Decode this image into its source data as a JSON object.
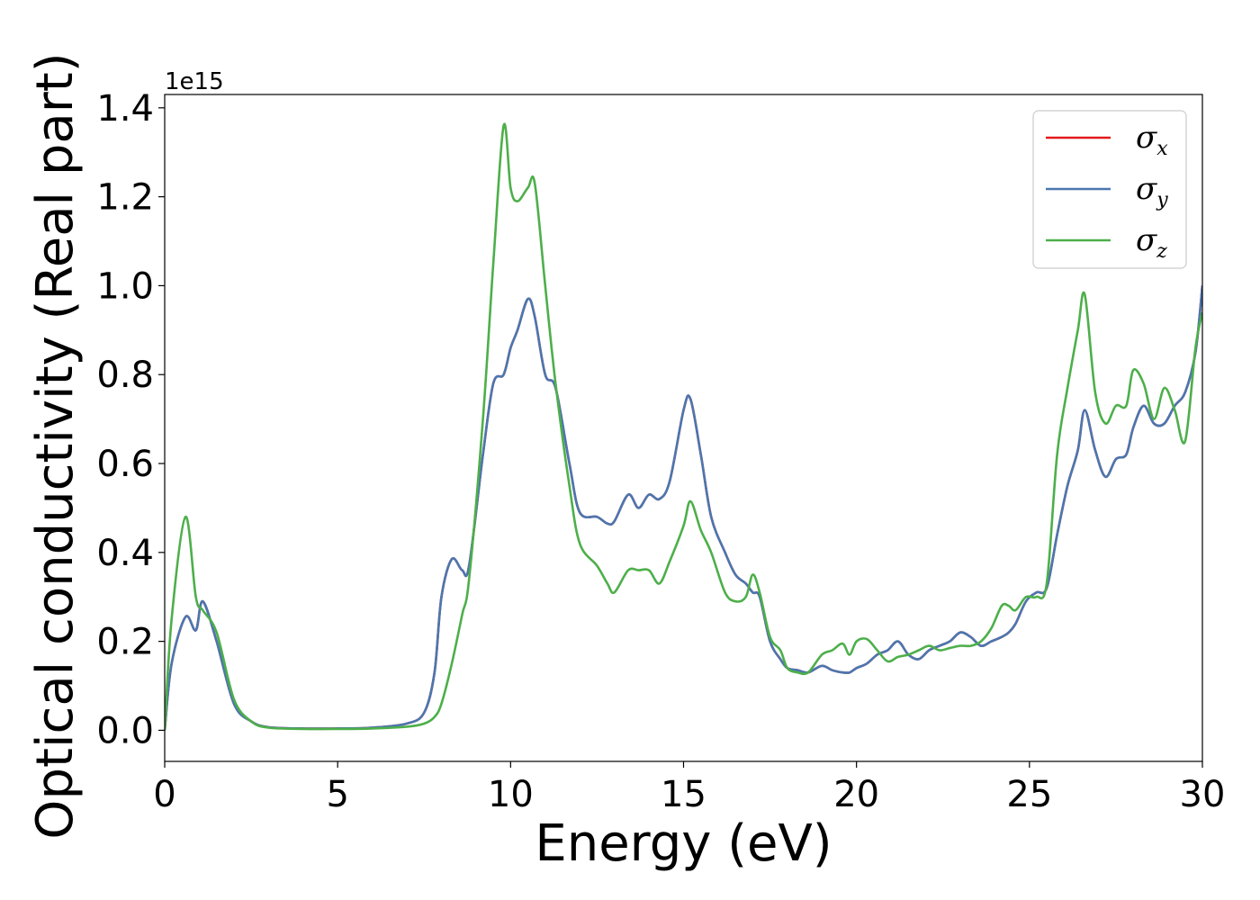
{
  "chart_data": {
    "type": "line",
    "xlabel": "Energy (eV)",
    "ylabel": "Optical conductivity (Real part)",
    "y_offset_label": "1e15",
    "xlim": [
      0,
      30
    ],
    "ylim": [
      -0.07,
      1.43
    ],
    "x_ticks": [
      0,
      5,
      10,
      15,
      20,
      25,
      30
    ],
    "x_tick_labels": [
      "0",
      "5",
      "10",
      "15",
      "20",
      "25",
      "30"
    ],
    "y_ticks": [
      0.0,
      0.2,
      0.4,
      0.6,
      0.8,
      1.0,
      1.2,
      1.4
    ],
    "y_tick_labels": [
      "0.0",
      "0.2",
      "0.4",
      "0.6",
      "0.8",
      "1.0",
      "1.2",
      "1.4"
    ],
    "grid": false,
    "legend_position": "top-right",
    "colors": {
      "sigma_x": "#e41a1c",
      "sigma_y": "#4a77b0",
      "sigma_z": "#4daf4a"
    },
    "legend": [
      {
        "base": "σ",
        "sub": "x",
        "color": "#e41a1c"
      },
      {
        "base": "σ",
        "sub": "y",
        "color": "#4a77b0"
      },
      {
        "base": "σ",
        "sub": "z",
        "color": "#4daf4a"
      }
    ],
    "x": [
      0,
      0.2,
      0.6,
      0.9,
      1.1,
      1.5,
      2.0,
      2.5,
      3.0,
      4.0,
      5.0,
      6.0,
      7.0,
      7.5,
      7.8,
      8.0,
      8.3,
      8.6,
      8.8,
      9.2,
      9.5,
      9.8,
      10.0,
      10.2,
      10.5,
      10.7,
      11.0,
      11.3,
      11.7,
      12.0,
      12.5,
      12.8,
      13.0,
      13.4,
      13.7,
      14.0,
      14.3,
      14.6,
      15.0,
      15.2,
      15.5,
      15.8,
      16.2,
      16.5,
      16.8,
      17.0,
      17.2,
      17.5,
      17.8,
      18.0,
      18.3,
      18.6,
      19.0,
      19.3,
      19.6,
      19.8,
      20.0,
      20.3,
      20.6,
      20.9,
      21.2,
      21.5,
      21.8,
      22.1,
      22.4,
      22.7,
      23.0,
      23.3,
      23.6,
      23.9,
      24.2,
      24.4,
      24.6,
      24.9,
      25.2,
      25.5,
      25.8,
      26.1,
      26.4,
      26.6,
      26.9,
      27.2,
      27.5,
      27.8,
      28.0,
      28.3,
      28.6,
      28.9,
      29.2,
      29.5,
      29.8,
      30.0
    ],
    "series": [
      {
        "name": "σx",
        "color": "#e41a1c",
        "values": [
          0,
          0.15,
          0.255,
          0.225,
          0.29,
          0.2,
          0.06,
          0.02,
          0.007,
          0.004,
          0.004,
          0.006,
          0.015,
          0.04,
          0.13,
          0.3,
          0.385,
          0.36,
          0.37,
          0.62,
          0.78,
          0.8,
          0.86,
          0.9,
          0.97,
          0.93,
          0.8,
          0.77,
          0.6,
          0.49,
          0.48,
          0.465,
          0.47,
          0.53,
          0.5,
          0.53,
          0.52,
          0.56,
          0.72,
          0.745,
          0.62,
          0.48,
          0.4,
          0.35,
          0.33,
          0.31,
          0.3,
          0.2,
          0.16,
          0.14,
          0.135,
          0.13,
          0.145,
          0.135,
          0.13,
          0.13,
          0.14,
          0.15,
          0.17,
          0.18,
          0.2,
          0.17,
          0.16,
          0.18,
          0.19,
          0.2,
          0.22,
          0.21,
          0.19,
          0.2,
          0.21,
          0.22,
          0.24,
          0.29,
          0.31,
          0.32,
          0.44,
          0.55,
          0.63,
          0.72,
          0.63,
          0.57,
          0.61,
          0.62,
          0.68,
          0.73,
          0.69,
          0.69,
          0.73,
          0.76,
          0.85,
          1.0
        ]
      },
      {
        "name": "σy",
        "color": "#4a77b0",
        "values": [
          0,
          0.15,
          0.255,
          0.225,
          0.29,
          0.2,
          0.06,
          0.02,
          0.007,
          0.004,
          0.004,
          0.006,
          0.015,
          0.04,
          0.13,
          0.3,
          0.385,
          0.36,
          0.37,
          0.62,
          0.78,
          0.8,
          0.86,
          0.9,
          0.97,
          0.93,
          0.8,
          0.77,
          0.6,
          0.49,
          0.48,
          0.465,
          0.47,
          0.53,
          0.5,
          0.53,
          0.52,
          0.56,
          0.72,
          0.745,
          0.62,
          0.48,
          0.4,
          0.35,
          0.33,
          0.31,
          0.3,
          0.2,
          0.16,
          0.14,
          0.135,
          0.13,
          0.145,
          0.135,
          0.13,
          0.13,
          0.14,
          0.15,
          0.17,
          0.18,
          0.2,
          0.17,
          0.16,
          0.18,
          0.19,
          0.2,
          0.22,
          0.21,
          0.19,
          0.2,
          0.21,
          0.22,
          0.24,
          0.29,
          0.31,
          0.32,
          0.44,
          0.55,
          0.63,
          0.72,
          0.63,
          0.57,
          0.61,
          0.62,
          0.68,
          0.73,
          0.69,
          0.69,
          0.73,
          0.76,
          0.85,
          1.0
        ]
      },
      {
        "name": "σz",
        "color": "#4daf4a",
        "values": [
          0,
          0.25,
          0.48,
          0.3,
          0.27,
          0.22,
          0.07,
          0.02,
          0.006,
          0.003,
          0.003,
          0.004,
          0.008,
          0.015,
          0.03,
          0.06,
          0.15,
          0.26,
          0.34,
          0.7,
          1.05,
          1.36,
          1.22,
          1.19,
          1.22,
          1.23,
          1.0,
          0.78,
          0.55,
          0.42,
          0.37,
          0.33,
          0.31,
          0.36,
          0.36,
          0.36,
          0.33,
          0.38,
          0.46,
          0.515,
          0.45,
          0.4,
          0.31,
          0.29,
          0.3,
          0.35,
          0.31,
          0.21,
          0.18,
          0.14,
          0.13,
          0.13,
          0.17,
          0.18,
          0.195,
          0.17,
          0.2,
          0.205,
          0.18,
          0.155,
          0.165,
          0.17,
          0.18,
          0.19,
          0.18,
          0.185,
          0.19,
          0.19,
          0.2,
          0.23,
          0.28,
          0.28,
          0.27,
          0.3,
          0.3,
          0.33,
          0.62,
          0.77,
          0.9,
          0.98,
          0.76,
          0.69,
          0.73,
          0.73,
          0.81,
          0.78,
          0.7,
          0.77,
          0.72,
          0.65,
          0.86,
          0.94
        ]
      }
    ]
  }
}
